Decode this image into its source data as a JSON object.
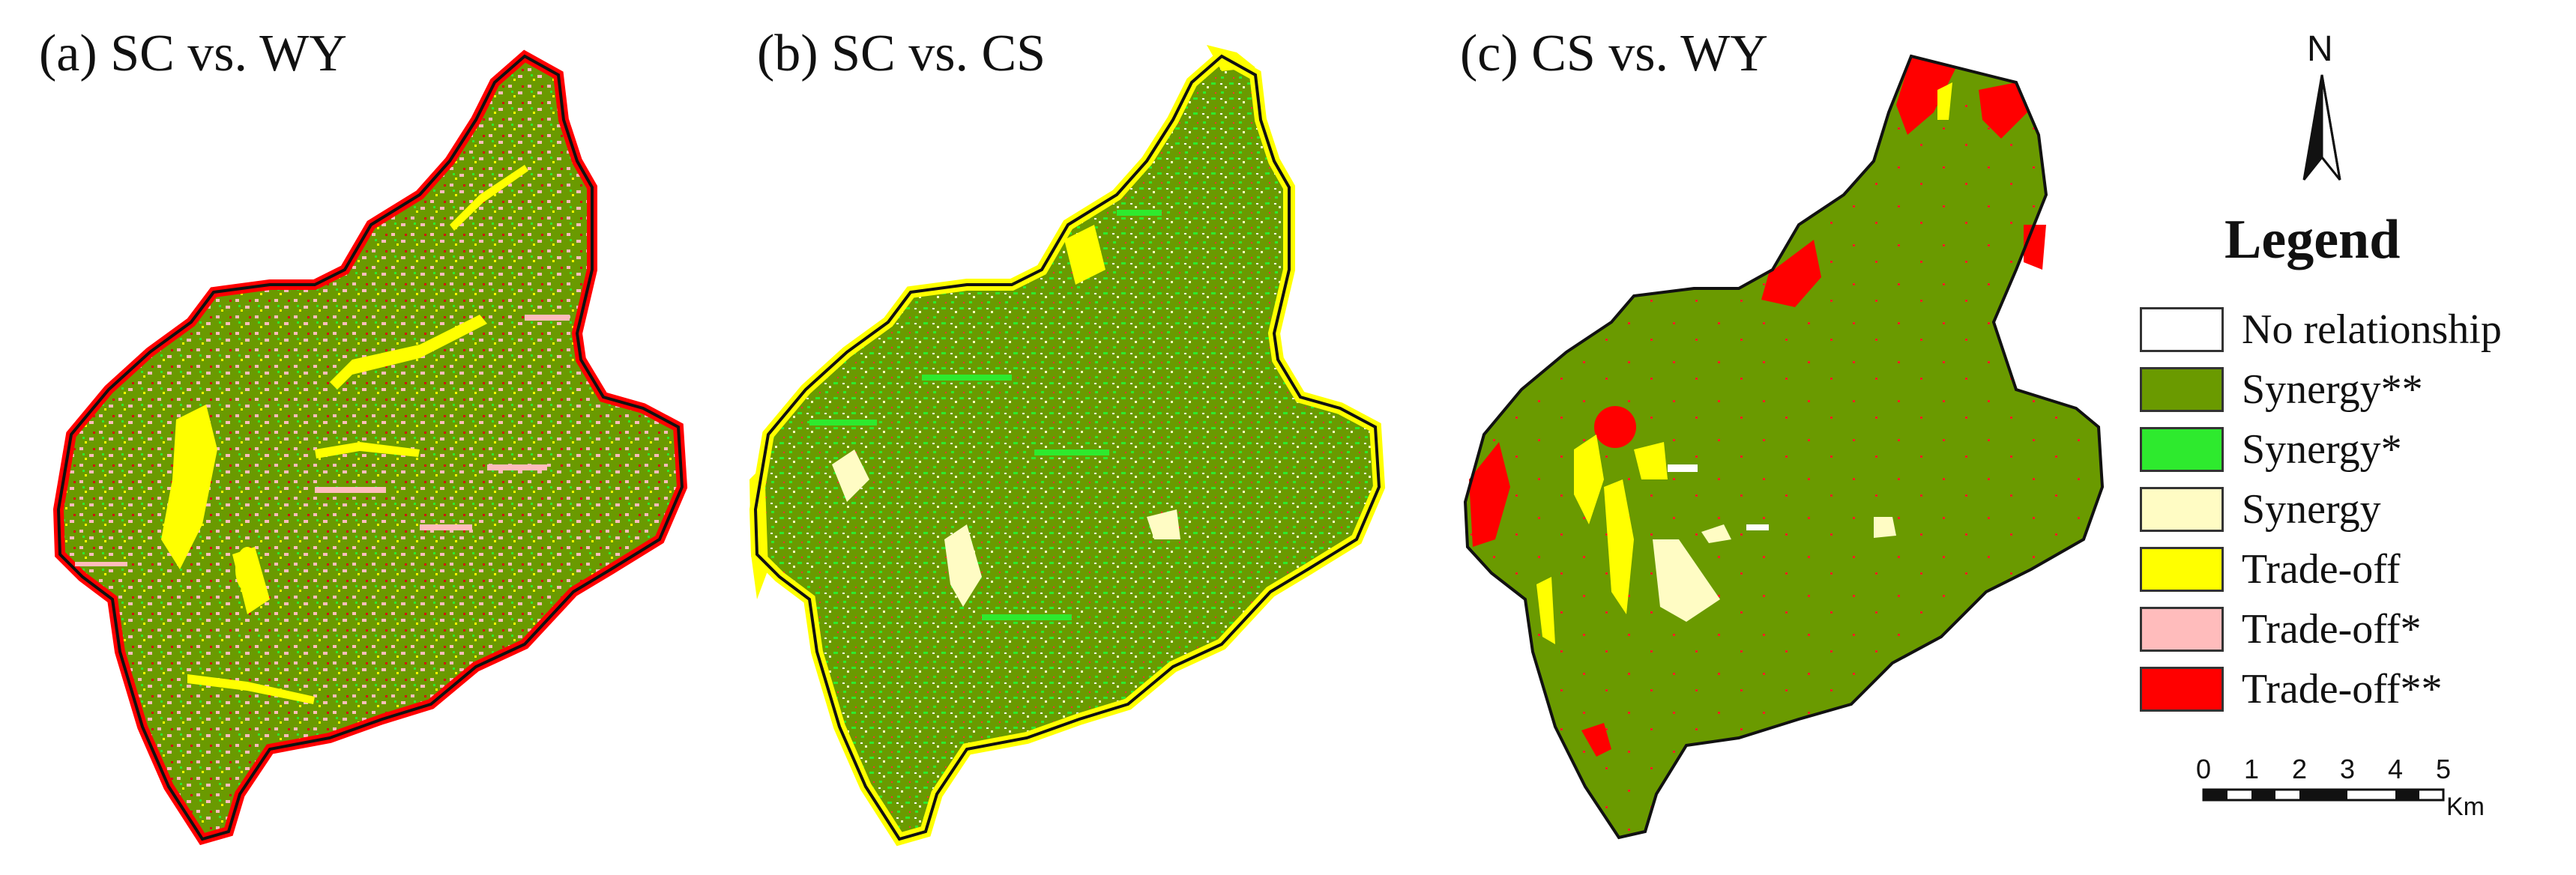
{
  "panels": [
    {
      "title": "(a) SC vs. WY"
    },
    {
      "title": "(b) SC vs. CS"
    },
    {
      "title": "(c)  CS vs. WY"
    }
  ],
  "north_arrow": {
    "label": "N"
  },
  "legend": {
    "title": "Legend",
    "items": [
      {
        "label": "No relationship",
        "color": "#ffffff"
      },
      {
        "label": "Synergy**",
        "color": "#6a9a00"
      },
      {
        "label": "Synergy*",
        "color": "#2eea2e"
      },
      {
        "label": "Synergy",
        "color": "#fffcc4"
      },
      {
        "label": "Trade-off",
        "color": "#ffff00"
      },
      {
        "label": "Trade-off*",
        "color": "#ffbcbc"
      },
      {
        "label": "Trade-off**",
        "color": "#ff0000"
      }
    ]
  },
  "scale_bar": {
    "ticks": [
      "0",
      "1",
      "2",
      "3",
      "4",
      "5"
    ],
    "unit": "Km"
  }
}
